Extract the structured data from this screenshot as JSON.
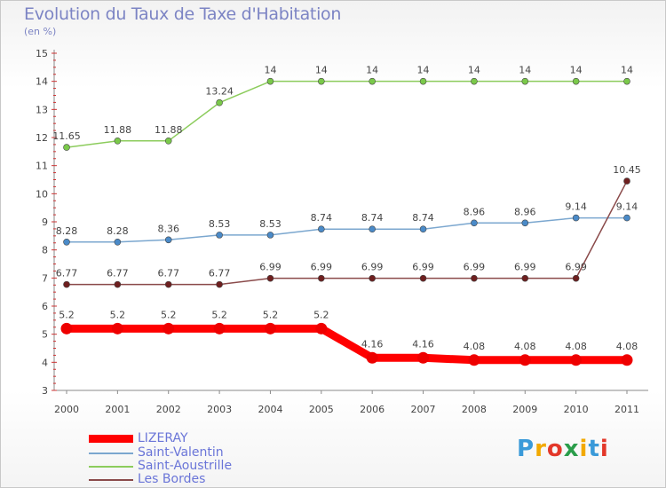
{
  "title": "Evolution du Taux de Taxe d'Habitation",
  "subtitle": "(en %)",
  "chart_data": {
    "type": "line",
    "title": "Evolution du Taux de Taxe d'Habitation",
    "ylabel": "(en %)",
    "categories": [
      "2000",
      "2001",
      "2002",
      "2003",
      "2004",
      "2005",
      "2006",
      "2007",
      "2008",
      "2009",
      "2010",
      "2011"
    ],
    "ylim": [
      3,
      15
    ],
    "yticks": [
      "3",
      "4",
      "5",
      "6",
      "7",
      "8",
      "9",
      "10",
      "11",
      "12",
      "13",
      "14",
      "15"
    ],
    "grid": "none",
    "legend": "bottom-left",
    "series": [
      {
        "name": "Saint-Aoustrille",
        "color": "#8ccc5c",
        "dot": "#7ac94a",
        "values": [
          11.65,
          11.88,
          11.88,
          13.24,
          14,
          14,
          14,
          14,
          14,
          14,
          14,
          14
        ],
        "labels": [
          "11.65",
          "11.88",
          "11.88",
          "13.24",
          "14",
          "14",
          "14",
          "14",
          "14",
          "14",
          "14",
          "14"
        ]
      },
      {
        "name": "Saint-Valentin",
        "color": "#7ba7cf",
        "dot": "#4a8ac8",
        "values": [
          8.28,
          8.28,
          8.36,
          8.53,
          8.53,
          8.74,
          8.74,
          8.74,
          8.96,
          8.96,
          9.14,
          9.14
        ],
        "labels": [
          "8.28",
          "8.28",
          "8.36",
          "8.53",
          "8.53",
          "8.74",
          "8.74",
          "8.74",
          "8.96",
          "8.96",
          "9.14",
          "9.14"
        ]
      },
      {
        "name": "Les Bordes",
        "color": "#8a4a4a",
        "dot": "#6e1f1f",
        "values": [
          6.77,
          6.77,
          6.77,
          6.77,
          6.99,
          6.99,
          6.99,
          6.99,
          6.99,
          6.99,
          6.99,
          10.45
        ],
        "labels": [
          "6.77",
          "6.77",
          "6.77",
          "6.77",
          "6.99",
          "6.99",
          "6.99",
          "6.99",
          "6.99",
          "6.99",
          "6.99",
          "10.45"
        ]
      },
      {
        "name": "LIZERAY",
        "color": "#ff0000",
        "dot": "#ee0000",
        "values": [
          5.2,
          5.2,
          5.2,
          5.2,
          5.2,
          5.2,
          4.16,
          4.16,
          4.08,
          4.08,
          4.08,
          4.08
        ],
        "labels": [
          "5.2",
          "5.2",
          "5.2",
          "5.2",
          "5.2",
          "5.2",
          "4.16",
          "4.16",
          "4.08",
          "4.08",
          "4.08",
          "4.08"
        ]
      }
    ]
  },
  "legend": [
    {
      "label": "LIZERAY",
      "color": "#ff0000",
      "thick": true
    },
    {
      "label": "Saint-Valentin",
      "color": "#7ba7cf",
      "thick": false
    },
    {
      "label": "Saint-Aoustrille",
      "color": "#8ccc5c",
      "thick": false
    },
    {
      "label": "Les Bordes",
      "color": "#8a4a4a",
      "thick": false
    }
  ],
  "logo": {
    "letters": [
      "P",
      "r",
      "o",
      "x",
      "i",
      "t",
      "i"
    ],
    "colors": [
      "#3a9ad9",
      "#f2a900",
      "#e3382a",
      "#2a9d4a",
      "#f2a900",
      "#3a9ad9",
      "#e3382a"
    ]
  }
}
